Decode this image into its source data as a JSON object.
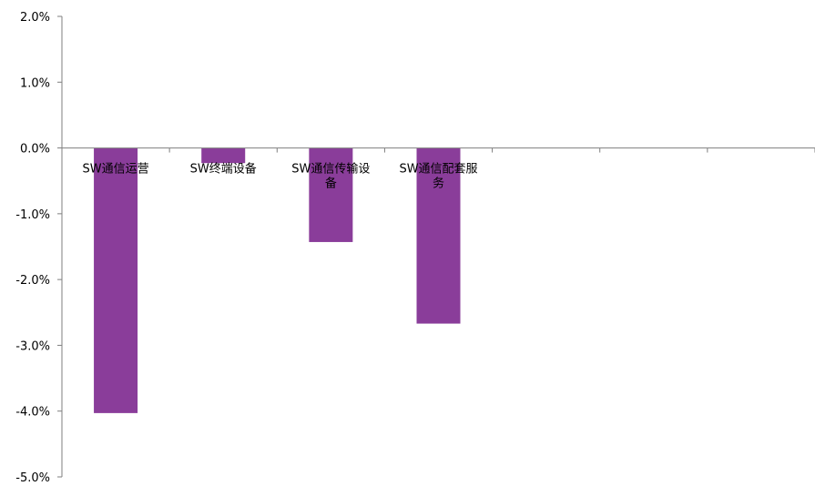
{
  "chart_data": {
    "type": "bar",
    "categories": [
      [
        "SW通信运营"
      ],
      [
        "SW终端设备"
      ],
      [
        "SW通信传输设",
        "备"
      ],
      [
        "SW通信配套服",
        "务"
      ],
      [
        ""
      ],
      [
        ""
      ],
      [
        ""
      ]
    ],
    "values": [
      -4.03,
      -0.23,
      -1.43,
      -2.67,
      null,
      null,
      null
    ],
    "bar_color": "#8a3d9a",
    "ylim": [
      -5.0,
      2.0
    ],
    "yticks": [
      "2.0%",
      "1.0%",
      "0.0%",
      "-1.0%",
      "-2.0%",
      "-3.0%",
      "-4.0%",
      "-5.0%"
    ],
    "grid": false,
    "legend": "none",
    "title": "",
    "xlabel": "",
    "ylabel": ""
  }
}
